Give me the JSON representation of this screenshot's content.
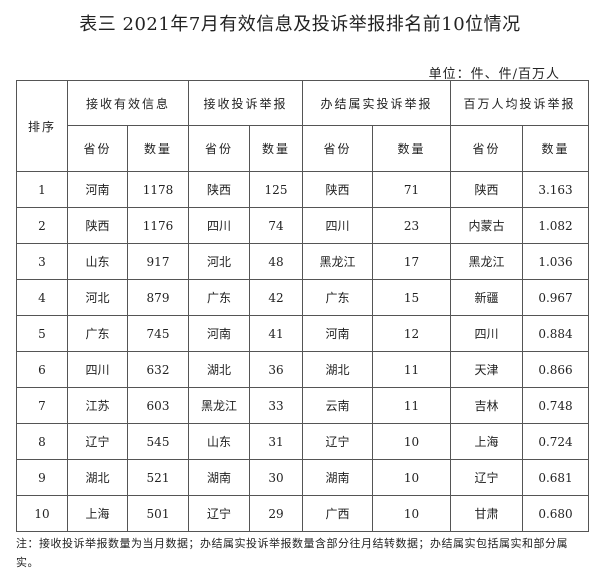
{
  "title": "表三 2021年7月有效信息及投诉举报排名前10位情况",
  "unit": "单位：件、件/百万人",
  "headers": {
    "rank": "排序",
    "groups": [
      "接收有效信息",
      "接收投诉举报",
      "办结属实投诉举报",
      "百万人均投诉举报"
    ],
    "province": "省份",
    "count": "数量"
  },
  "rows": [
    [
      "1",
      "河南",
      "1178",
      "陕西",
      "125",
      "陕西",
      "71",
      "陕西",
      "3.163"
    ],
    [
      "2",
      "陕西",
      "1176",
      "四川",
      "74",
      "四川",
      "23",
      "内蒙古",
      "1.082"
    ],
    [
      "3",
      "山东",
      "917",
      "河北",
      "48",
      "黑龙江",
      "17",
      "黑龙江",
      "1.036"
    ],
    [
      "4",
      "河北",
      "879",
      "广东",
      "42",
      "广东",
      "15",
      "新疆",
      "0.967"
    ],
    [
      "5",
      "广东",
      "745",
      "河南",
      "41",
      "河南",
      "12",
      "四川",
      "0.884"
    ],
    [
      "6",
      "四川",
      "632",
      "湖北",
      "36",
      "湖北",
      "11",
      "天津",
      "0.866"
    ],
    [
      "7",
      "江苏",
      "603",
      "黑龙江",
      "33",
      "云南",
      "11",
      "吉林",
      "0.748"
    ],
    [
      "8",
      "辽宁",
      "545",
      "山东",
      "31",
      "辽宁",
      "10",
      "上海",
      "0.724"
    ],
    [
      "9",
      "湖北",
      "521",
      "湖南",
      "30",
      "湖南",
      "10",
      "辽宁",
      "0.681"
    ],
    [
      "10",
      "上海",
      "501",
      "辽宁",
      "29",
      "广西",
      "10",
      "甘肃",
      "0.680"
    ]
  ],
  "note": "注：接收投诉举报数量为当月数据；办结属实投诉举报数量含部分往月结转数据；办结属实包括属实和部分属实。"
}
